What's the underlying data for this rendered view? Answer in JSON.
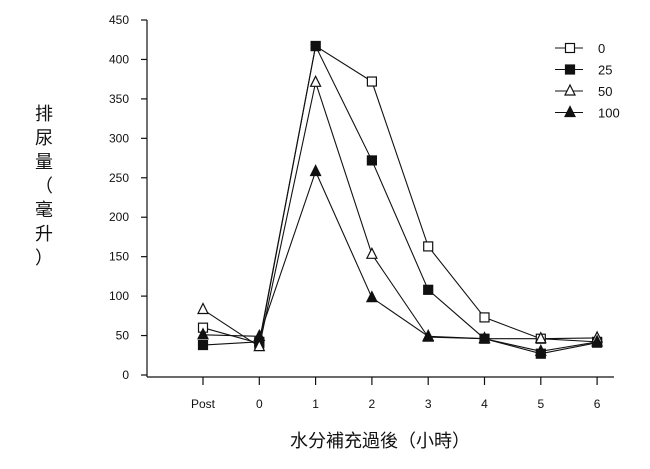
{
  "chart_data": {
    "type": "line",
    "xlabel": "水分補充過後（小時）",
    "ylabel": "排尿量（毫升）",
    "categories": [
      "Post",
      "0",
      "1",
      "2",
      "3",
      "4",
      "5",
      "6"
    ],
    "ylim": [
      0,
      450
    ],
    "yticks": [
      0,
      50,
      100,
      150,
      200,
      250,
      300,
      350,
      400,
      450
    ],
    "grid": false,
    "legend_position": "top-right",
    "series": [
      {
        "name": "0",
        "marker": "square-open",
        "values": [
          60,
          40,
          417,
          372,
          163,
          73,
          46,
          42
        ]
      },
      {
        "name": "25",
        "marker": "square-filled",
        "values": [
          38,
          42,
          417,
          272,
          108,
          46,
          27,
          41
        ]
      },
      {
        "name": "50",
        "marker": "triangle-open",
        "values": [
          83,
          36,
          371,
          153,
          48,
          46,
          46,
          47
        ]
      },
      {
        "name": "100",
        "marker": "triangle-filled",
        "values": [
          51,
          49,
          258,
          98,
          49,
          46,
          30,
          42
        ]
      }
    ]
  }
}
